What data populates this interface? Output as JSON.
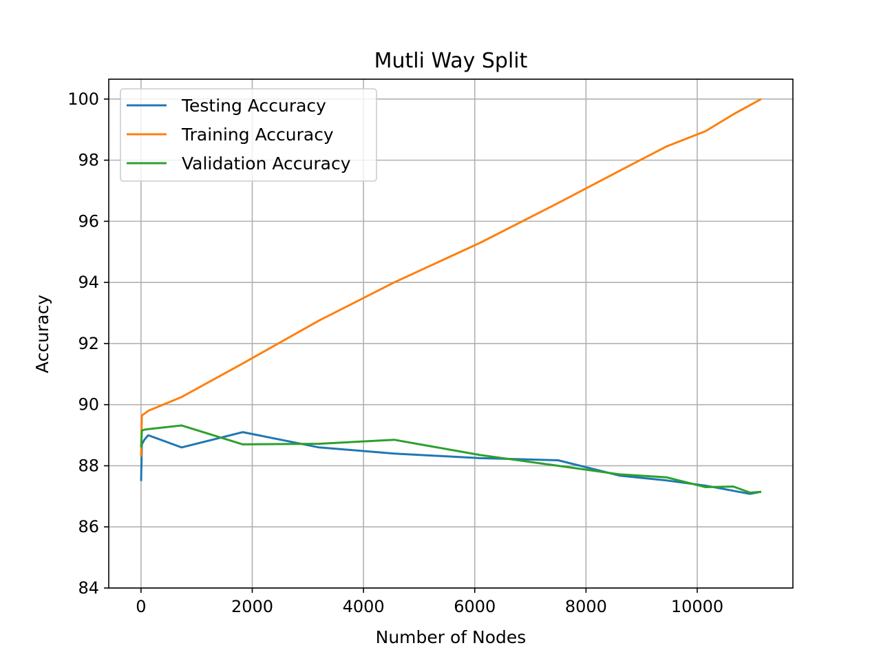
{
  "chart_data": {
    "type": "line",
    "title": "Mutli Way Split",
    "xlabel": "Number of Nodes",
    "ylabel": "Accuracy",
    "xlim": [
      -580,
      11720
    ],
    "ylim": [
      84,
      100.65
    ],
    "xticks": [
      0,
      2000,
      4000,
      6000,
      8000,
      10000
    ],
    "xtick_labels": [
      "0",
      "2000",
      "4000",
      "6000",
      "8000",
      "10000"
    ],
    "yticks": [
      84,
      86,
      88,
      90,
      92,
      94,
      96,
      98,
      100
    ],
    "ytick_labels": [
      "84",
      "86",
      "88",
      "90",
      "92",
      "94",
      "96",
      "98",
      "100"
    ],
    "grid": true,
    "legend_position": "top-left",
    "series": [
      {
        "name": "Testing Accuracy",
        "color": "#1f77b4",
        "x": [
          1,
          15,
          60,
          130,
          730,
          1830,
          3200,
          4550,
          6100,
          7500,
          8600,
          9450,
          10150,
          10950,
          11150
        ],
        "y": [
          87.5,
          88.7,
          88.85,
          89.0,
          88.6,
          89.1,
          88.6,
          88.4,
          88.25,
          88.18,
          87.68,
          87.52,
          87.35,
          87.08,
          87.15
        ]
      },
      {
        "name": "Training Accuracy",
        "color": "#ff7f0e",
        "x": [
          1,
          15,
          60,
          130,
          730,
          1830,
          3200,
          4550,
          6100,
          7500,
          8600,
          9450,
          10150,
          10650,
          11150
        ],
        "y": [
          88.3,
          89.65,
          89.7,
          89.8,
          90.25,
          91.35,
          92.75,
          94.0,
          95.3,
          96.6,
          97.65,
          98.45,
          98.95,
          99.5,
          100.0
        ]
      },
      {
        "name": "Validation Accuracy",
        "color": "#2ca02c",
        "x": [
          1,
          15,
          60,
          130,
          730,
          1830,
          3200,
          4550,
          6100,
          7500,
          8600,
          9450,
          10150,
          10650,
          10950,
          11150
        ],
        "y": [
          88.6,
          89.15,
          89.18,
          89.2,
          89.32,
          88.7,
          88.72,
          88.85,
          88.35,
          88.0,
          87.72,
          87.62,
          87.3,
          87.32,
          87.12,
          87.15
        ]
      }
    ]
  }
}
